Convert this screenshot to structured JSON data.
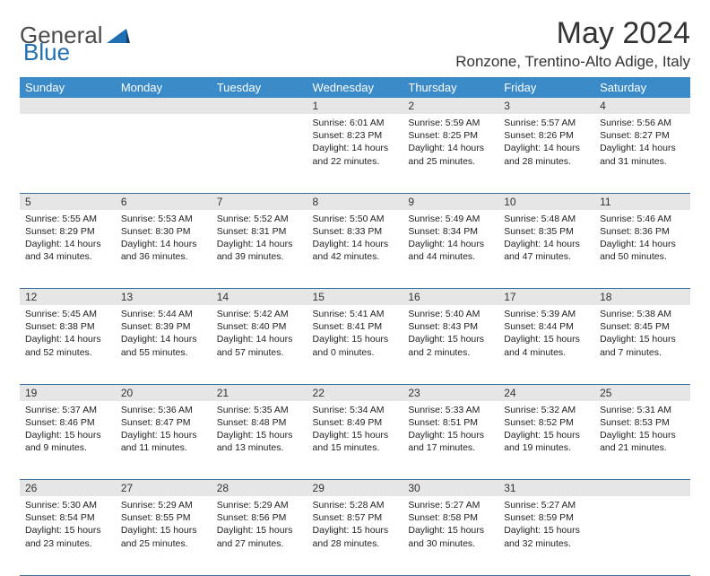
{
  "logo": {
    "part1": "General",
    "part2": "Blue"
  },
  "title": "May 2024",
  "location": "Ronzone, Trentino-Alto Adige, Italy",
  "headers": [
    "Sunday",
    "Monday",
    "Tuesday",
    "Wednesday",
    "Thursday",
    "Friday",
    "Saturday"
  ],
  "colors": {
    "header_bg": "#3b8bc9",
    "header_text": "#ffffff",
    "daynum_bg": "#e6e6e6",
    "row_border": "#3b6fa0",
    "body_text": "#222222",
    "title_text": "#333333"
  },
  "weeks": [
    [
      null,
      null,
      null,
      {
        "n": "1",
        "sr": "Sunrise: 6:01 AM",
        "ss": "Sunset: 8:23 PM",
        "d1": "Daylight: 14 hours",
        "d2": "and 22 minutes."
      },
      {
        "n": "2",
        "sr": "Sunrise: 5:59 AM",
        "ss": "Sunset: 8:25 PM",
        "d1": "Daylight: 14 hours",
        "d2": "and 25 minutes."
      },
      {
        "n": "3",
        "sr": "Sunrise: 5:57 AM",
        "ss": "Sunset: 8:26 PM",
        "d1": "Daylight: 14 hours",
        "d2": "and 28 minutes."
      },
      {
        "n": "4",
        "sr": "Sunrise: 5:56 AM",
        "ss": "Sunset: 8:27 PM",
        "d1": "Daylight: 14 hours",
        "d2": "and 31 minutes."
      }
    ],
    [
      {
        "n": "5",
        "sr": "Sunrise: 5:55 AM",
        "ss": "Sunset: 8:29 PM",
        "d1": "Daylight: 14 hours",
        "d2": "and 34 minutes."
      },
      {
        "n": "6",
        "sr": "Sunrise: 5:53 AM",
        "ss": "Sunset: 8:30 PM",
        "d1": "Daylight: 14 hours",
        "d2": "and 36 minutes."
      },
      {
        "n": "7",
        "sr": "Sunrise: 5:52 AM",
        "ss": "Sunset: 8:31 PM",
        "d1": "Daylight: 14 hours",
        "d2": "and 39 minutes."
      },
      {
        "n": "8",
        "sr": "Sunrise: 5:50 AM",
        "ss": "Sunset: 8:33 PM",
        "d1": "Daylight: 14 hours",
        "d2": "and 42 minutes."
      },
      {
        "n": "9",
        "sr": "Sunrise: 5:49 AM",
        "ss": "Sunset: 8:34 PM",
        "d1": "Daylight: 14 hours",
        "d2": "and 44 minutes."
      },
      {
        "n": "10",
        "sr": "Sunrise: 5:48 AM",
        "ss": "Sunset: 8:35 PM",
        "d1": "Daylight: 14 hours",
        "d2": "and 47 minutes."
      },
      {
        "n": "11",
        "sr": "Sunrise: 5:46 AM",
        "ss": "Sunset: 8:36 PM",
        "d1": "Daylight: 14 hours",
        "d2": "and 50 minutes."
      }
    ],
    [
      {
        "n": "12",
        "sr": "Sunrise: 5:45 AM",
        "ss": "Sunset: 8:38 PM",
        "d1": "Daylight: 14 hours",
        "d2": "and 52 minutes."
      },
      {
        "n": "13",
        "sr": "Sunrise: 5:44 AM",
        "ss": "Sunset: 8:39 PM",
        "d1": "Daylight: 14 hours",
        "d2": "and 55 minutes."
      },
      {
        "n": "14",
        "sr": "Sunrise: 5:42 AM",
        "ss": "Sunset: 8:40 PM",
        "d1": "Daylight: 14 hours",
        "d2": "and 57 minutes."
      },
      {
        "n": "15",
        "sr": "Sunrise: 5:41 AM",
        "ss": "Sunset: 8:41 PM",
        "d1": "Daylight: 15 hours",
        "d2": "and 0 minutes."
      },
      {
        "n": "16",
        "sr": "Sunrise: 5:40 AM",
        "ss": "Sunset: 8:43 PM",
        "d1": "Daylight: 15 hours",
        "d2": "and 2 minutes."
      },
      {
        "n": "17",
        "sr": "Sunrise: 5:39 AM",
        "ss": "Sunset: 8:44 PM",
        "d1": "Daylight: 15 hours",
        "d2": "and 4 minutes."
      },
      {
        "n": "18",
        "sr": "Sunrise: 5:38 AM",
        "ss": "Sunset: 8:45 PM",
        "d1": "Daylight: 15 hours",
        "d2": "and 7 minutes."
      }
    ],
    [
      {
        "n": "19",
        "sr": "Sunrise: 5:37 AM",
        "ss": "Sunset: 8:46 PM",
        "d1": "Daylight: 15 hours",
        "d2": "and 9 minutes."
      },
      {
        "n": "20",
        "sr": "Sunrise: 5:36 AM",
        "ss": "Sunset: 8:47 PM",
        "d1": "Daylight: 15 hours",
        "d2": "and 11 minutes."
      },
      {
        "n": "21",
        "sr": "Sunrise: 5:35 AM",
        "ss": "Sunset: 8:48 PM",
        "d1": "Daylight: 15 hours",
        "d2": "and 13 minutes."
      },
      {
        "n": "22",
        "sr": "Sunrise: 5:34 AM",
        "ss": "Sunset: 8:49 PM",
        "d1": "Daylight: 15 hours",
        "d2": "and 15 minutes."
      },
      {
        "n": "23",
        "sr": "Sunrise: 5:33 AM",
        "ss": "Sunset: 8:51 PM",
        "d1": "Daylight: 15 hours",
        "d2": "and 17 minutes."
      },
      {
        "n": "24",
        "sr": "Sunrise: 5:32 AM",
        "ss": "Sunset: 8:52 PM",
        "d1": "Daylight: 15 hours",
        "d2": "and 19 minutes."
      },
      {
        "n": "25",
        "sr": "Sunrise: 5:31 AM",
        "ss": "Sunset: 8:53 PM",
        "d1": "Daylight: 15 hours",
        "d2": "and 21 minutes."
      }
    ],
    [
      {
        "n": "26",
        "sr": "Sunrise: 5:30 AM",
        "ss": "Sunset: 8:54 PM",
        "d1": "Daylight: 15 hours",
        "d2": "and 23 minutes."
      },
      {
        "n": "27",
        "sr": "Sunrise: 5:29 AM",
        "ss": "Sunset: 8:55 PM",
        "d1": "Daylight: 15 hours",
        "d2": "and 25 minutes."
      },
      {
        "n": "28",
        "sr": "Sunrise: 5:29 AM",
        "ss": "Sunset: 8:56 PM",
        "d1": "Daylight: 15 hours",
        "d2": "and 27 minutes."
      },
      {
        "n": "29",
        "sr": "Sunrise: 5:28 AM",
        "ss": "Sunset: 8:57 PM",
        "d1": "Daylight: 15 hours",
        "d2": "and 28 minutes."
      },
      {
        "n": "30",
        "sr": "Sunrise: 5:27 AM",
        "ss": "Sunset: 8:58 PM",
        "d1": "Daylight: 15 hours",
        "d2": "and 30 minutes."
      },
      {
        "n": "31",
        "sr": "Sunrise: 5:27 AM",
        "ss": "Sunset: 8:59 PM",
        "d1": "Daylight: 15 hours",
        "d2": "and 32 minutes."
      },
      null
    ]
  ]
}
